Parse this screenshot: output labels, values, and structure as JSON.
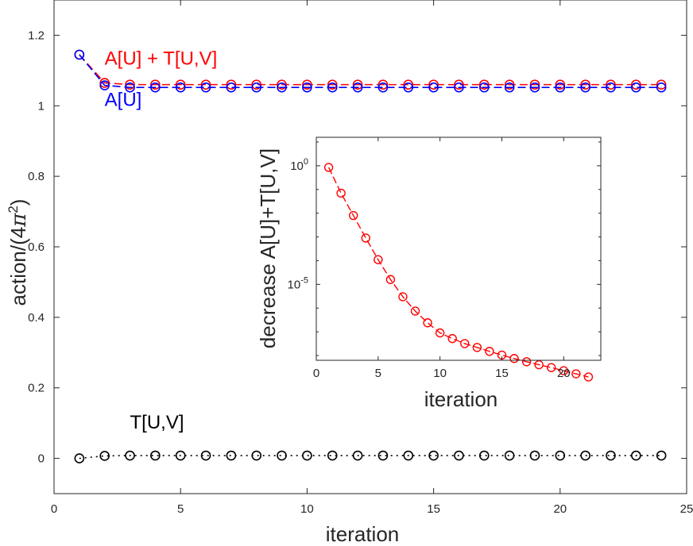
{
  "chart_data": [
    {
      "type": "line",
      "title": "",
      "xlabel": "iteration",
      "ylabel": "action/(4π²)",
      "xlim": [
        0,
        25
      ],
      "ylim": [
        -0.1,
        1.3
      ],
      "xticks": [
        0,
        5,
        10,
        15,
        20,
        25
      ],
      "yticks": [
        0,
        0.2,
        0.4,
        0.6,
        0.8,
        1,
        1.2
      ],
      "xtick_labels": [
        "0",
        "5",
        "10",
        "15",
        "20",
        "25"
      ],
      "ytick_labels": [
        "0",
        "0.2",
        "0.4",
        "0.6",
        "0.8",
        "1",
        "1.2"
      ],
      "ylabel_text": "action/(4",
      "ylabel_symbol": "π",
      "ylabel_exponent": "2",
      "ylabel_close": ")",
      "series": [
        {
          "name": "A[U] + T[U,V]",
          "color": "#ff0000",
          "line_style": "dashed",
          "marker": "circle",
          "x": [
            1,
            2,
            3,
            4,
            5,
            6,
            7,
            8,
            9,
            10,
            11,
            12,
            13,
            14,
            15,
            16,
            17,
            18,
            19,
            20,
            21,
            22,
            23,
            24
          ],
          "values": [
            1.145,
            1.065,
            1.06,
            1.06,
            1.06,
            1.06,
            1.06,
            1.06,
            1.06,
            1.06,
            1.06,
            1.06,
            1.06,
            1.06,
            1.06,
            1.06,
            1.06,
            1.06,
            1.06,
            1.06,
            1.06,
            1.06,
            1.06,
            1.06
          ]
        },
        {
          "name": "A[U]",
          "color": "#0000ff",
          "line_style": "dashed",
          "marker": "circle",
          "x": [
            1,
            2,
            3,
            4,
            5,
            6,
            7,
            8,
            9,
            10,
            11,
            12,
            13,
            14,
            15,
            16,
            17,
            18,
            19,
            20,
            21,
            22,
            23,
            24
          ],
          "values": [
            1.145,
            1.058,
            1.052,
            1.052,
            1.052,
            1.052,
            1.052,
            1.052,
            1.052,
            1.052,
            1.052,
            1.052,
            1.052,
            1.052,
            1.052,
            1.052,
            1.052,
            1.052,
            1.052,
            1.052,
            1.052,
            1.052,
            1.052,
            1.052
          ]
        },
        {
          "name": "T[U,V]",
          "color": "#000000",
          "line_style": "dotted",
          "marker": "circle",
          "x": [
            1,
            2,
            3,
            4,
            5,
            6,
            7,
            8,
            9,
            10,
            11,
            12,
            13,
            14,
            15,
            16,
            17,
            18,
            19,
            20,
            21,
            22,
            23,
            24
          ],
          "values": [
            0,
            0.007,
            0.008,
            0.008,
            0.008,
            0.008,
            0.008,
            0.008,
            0.008,
            0.008,
            0.008,
            0.008,
            0.008,
            0.008,
            0.008,
            0.008,
            0.008,
            0.008,
            0.008,
            0.008,
            0.008,
            0.008,
            0.008,
            0.008
          ]
        }
      ],
      "annotations": [
        {
          "text": "A[U] + T[U,V]",
          "color": "#ff0000",
          "x": 2.0,
          "y": 1.117
        },
        {
          "text": "A[U]",
          "color": "#0000ff",
          "x": 2.0,
          "y": 1.0
        },
        {
          "text": "T[U,V]",
          "color": "#000000",
          "x": 3.0,
          "y": 0.085
        }
      ]
    },
    {
      "type": "line",
      "title": "",
      "xlabel": "iteration",
      "ylabel": "decrease A[U]+T[U,V]",
      "yscale": "log",
      "xlim": [
        0,
        23
      ],
      "ylim_log10": [
        -8.2,
        1.2
      ],
      "xticks": [
        0,
        5,
        10,
        15,
        20
      ],
      "xtick_labels": [
        "0",
        "5",
        "10",
        "15",
        "20"
      ],
      "yticks_log10": [
        0,
        -5
      ],
      "ytick_bases": [
        "10",
        "10"
      ],
      "ytick_exponents": [
        "0",
        "-5"
      ],
      "series": [
        {
          "name": "decrease A[U]+T[U,V]",
          "color": "#ff0000",
          "line_style": "dashed",
          "marker": "circle",
          "x": [
            1,
            2,
            3,
            4,
            5,
            6,
            7,
            8,
            9,
            10,
            11,
            12,
            13,
            14,
            15,
            16,
            17,
            18,
            19,
            20,
            21,
            22
          ],
          "values": [
            0.85,
            0.07,
            0.008,
            0.0009,
            0.00011,
            1.6e-05,
            3e-06,
            7.5e-07,
            2.4e-07,
            9e-08,
            5.2e-08,
            3.2e-08,
            2.2e-08,
            1.5e-08,
            1.05e-08,
            7.5e-09,
            5.5e-09,
            4.1e-09,
            3.1e-09,
            2.3e-09,
            1.7e-09,
            1.25e-09
          ]
        }
      ]
    }
  ]
}
